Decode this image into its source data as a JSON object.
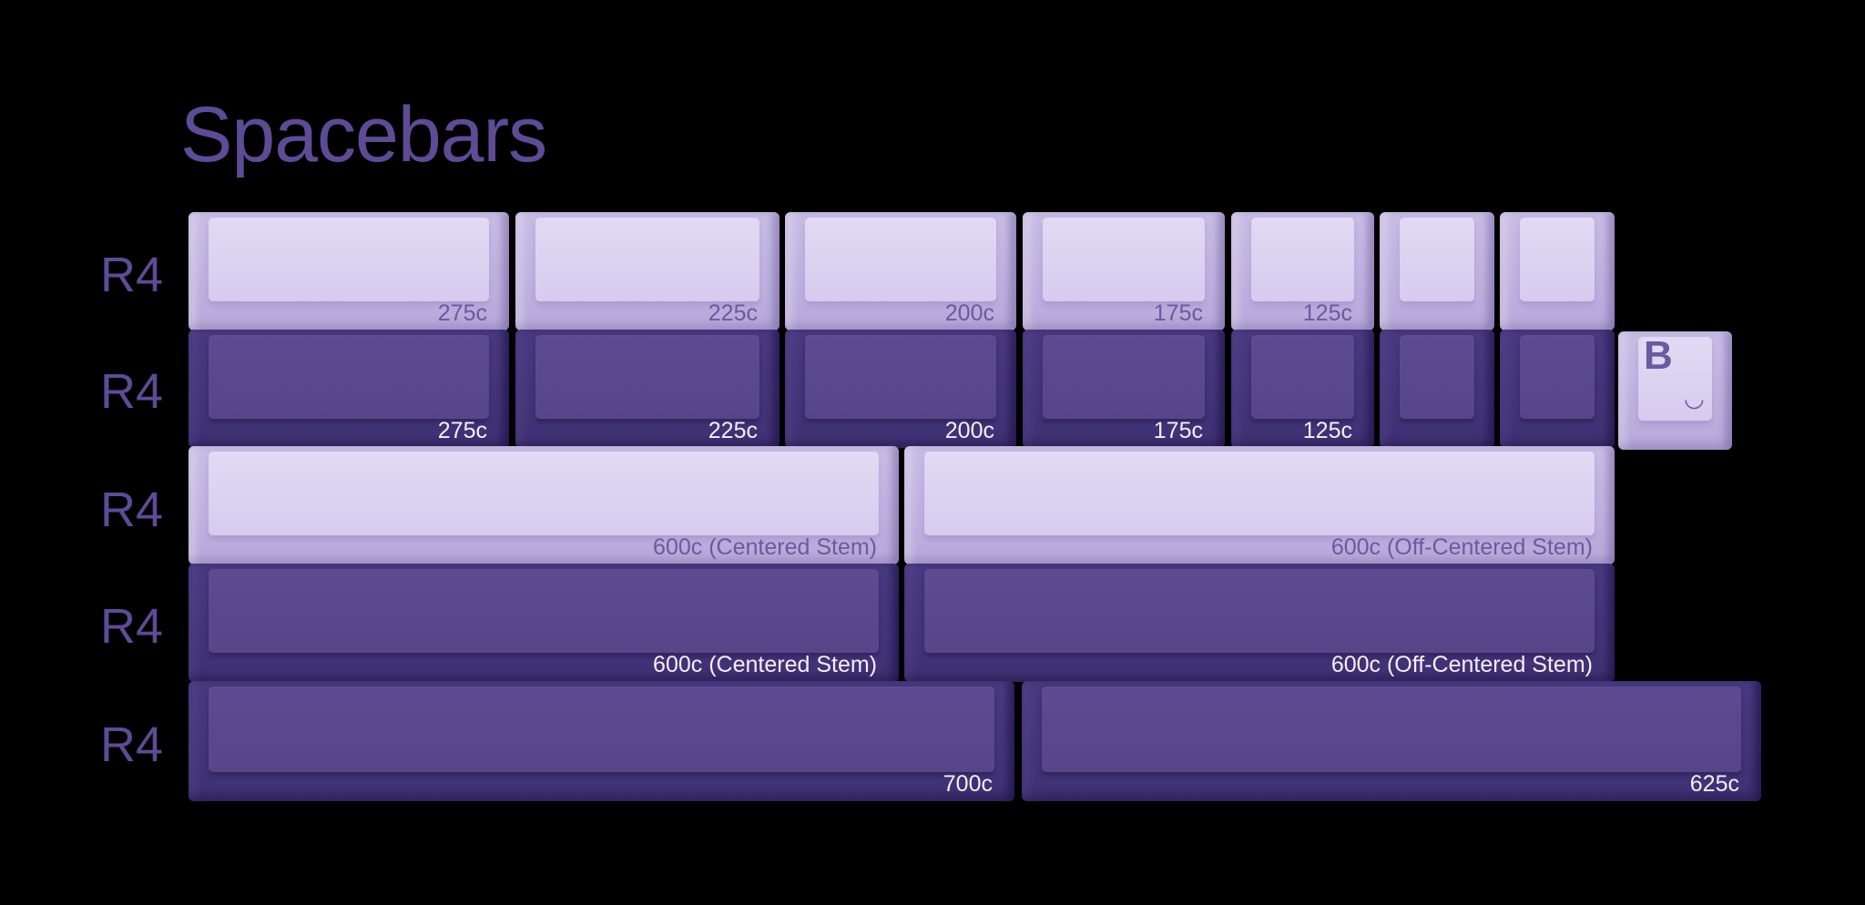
{
  "title": "Spacebars",
  "rows": [
    {
      "label": "R4",
      "keys": [
        {
          "legend": "275c"
        },
        {
          "legend": "225c"
        },
        {
          "legend": "200c"
        },
        {
          "legend": "175c"
        },
        {
          "legend": "125c"
        },
        {
          "legend": ""
        },
        {
          "legend": ""
        }
      ]
    },
    {
      "label": "R4",
      "keys": [
        {
          "legend": "275c"
        },
        {
          "legend": "225c"
        },
        {
          "legend": "200c"
        },
        {
          "legend": "175c"
        },
        {
          "legend": "125c"
        },
        {
          "legend": ""
        },
        {
          "legend": ""
        }
      ],
      "novelty": {
        "glyph": "B",
        "smile": "◡"
      }
    },
    {
      "label": "R4",
      "keys": [
        {
          "legend": "600c (Centered Stem)"
        },
        {
          "legend": "600c (Off-Centered Stem)"
        }
      ]
    },
    {
      "label": "R4",
      "keys": [
        {
          "legend": "600c (Centered Stem)"
        },
        {
          "legend": "600c (Off-Centered Stem)"
        }
      ]
    },
    {
      "label": "R4",
      "keys": [
        {
          "legend": "700c"
        },
        {
          "legend": "625c"
        }
      ]
    }
  ],
  "colors": {
    "background": "#000000",
    "accent": "#5e4b95",
    "light_cap": "#d6cbee",
    "dark_cap": "#574589"
  }
}
